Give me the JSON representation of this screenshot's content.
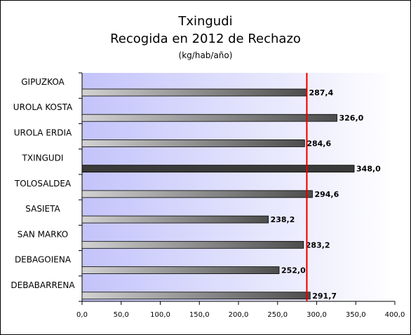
{
  "chart_data": {
    "type": "bar",
    "orientation": "horizontal",
    "title": "Txingudi",
    "subtitle": "Recogida en 2012 de Rechazo",
    "unit": "(kg/hab/año)",
    "categories": [
      "GIPUZKOA",
      "UROLA KOSTA",
      "UROLA ERDIA",
      "TXINGUDI",
      "TOLOSALDEA",
      "SASIETA",
      "SAN MARKO",
      "DEBAGOIENA",
      "DEBABARRENA"
    ],
    "values": [
      287.4,
      326.0,
      284.6,
      348.0,
      294.6,
      238.2,
      283.2,
      252.0,
      291.7
    ],
    "value_labels": [
      "287,4",
      "326,0",
      "284,6",
      "348,0",
      "294,6",
      "238,2",
      "283,2",
      "252,0",
      "291,7"
    ],
    "highlight_category": "TXINGUDI",
    "reference_line": {
      "value": 287.4,
      "color": "#e00000"
    },
    "xlim": [
      0,
      400
    ],
    "x_ticks": [
      0,
      50,
      100,
      150,
      200,
      250,
      300,
      350,
      400
    ],
    "x_tick_labels": [
      "0,0",
      "50,0",
      "100,0",
      "150,0",
      "200,0",
      "250,0",
      "300,0",
      "350,0",
      "400,0"
    ],
    "grid": false,
    "legend": "none",
    "colors": {
      "plot_gradient_left": "#c3c3fb",
      "plot_gradient_right": "#ffffff",
      "bar_light": "#d2d2d2",
      "bar_dark": "#4d4d4d",
      "highlight_bar": "#3a3a3a"
    }
  }
}
